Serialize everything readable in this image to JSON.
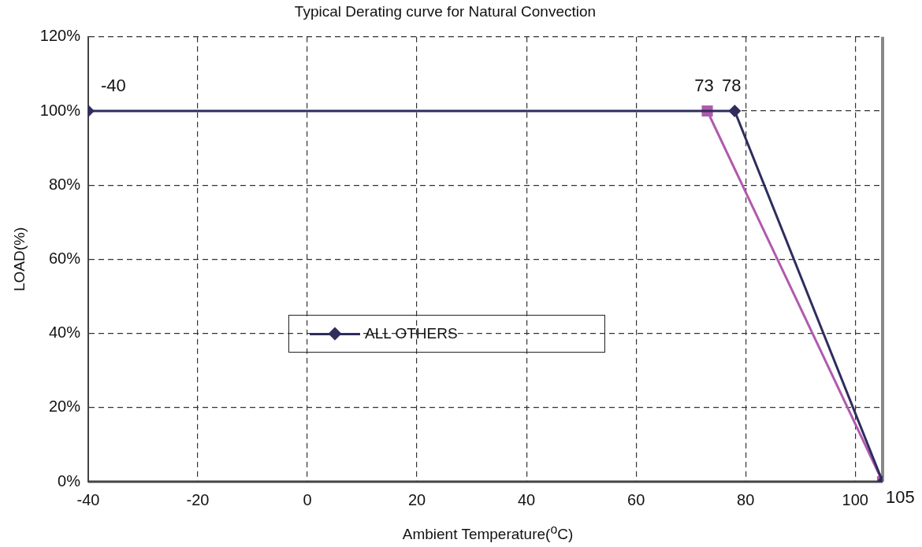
{
  "chart_data": {
    "type": "line",
    "title": "Typical Derating curve for Natural Convection",
    "xlabel": "Ambient Temperature($^{o}$C)",
    "ylabel": "LOAD(%)",
    "series": [
      {
        "name": "ALL OTHERS",
        "color": "#2e2d5e",
        "marker": "diamond",
        "x": [
          -40,
          78,
          105
        ],
        "values": [
          100,
          100,
          0
        ]
      },
      {
        "color": "#b05aad",
        "marker": "square",
        "x": [
          73,
          105
        ],
        "values": [
          100,
          0
        ]
      }
    ],
    "xlim": [
      -40,
      105
    ],
    "xticks": [
      -40,
      -20,
      0,
      20,
      40,
      60,
      80,
      100
    ],
    "ylim": [
      0,
      120
    ],
    "yticks": [
      {
        "value": 0,
        "label": "0%"
      },
      {
        "value": 20,
        "label": "20%"
      },
      {
        "value": 40,
        "label": "40%"
      },
      {
        "value": 60,
        "label": "60%"
      },
      {
        "value": 80,
        "label": "80%"
      },
      {
        "value": 100,
        "label": "100%"
      },
      {
        "value": 120,
        "label": "120%"
      }
    ],
    "grid": true,
    "legend": "center",
    "line_style": "solid",
    "annotations": [
      {
        "text": "-40",
        "x": -40,
        "y": 100
      },
      {
        "text": "73",
        "x": 73,
        "y": 100
      },
      {
        "text": "78",
        "x": 78,
        "y": 100
      },
      {
        "text": "105",
        "x": 105,
        "y": 0
      }
    ]
  }
}
